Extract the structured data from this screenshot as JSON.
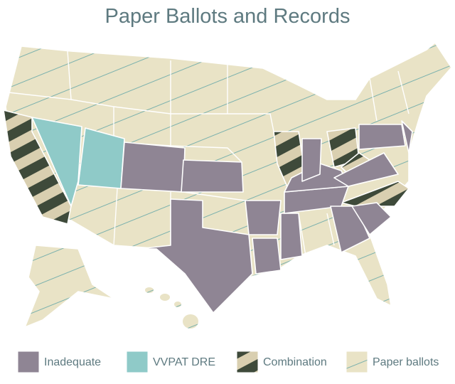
{
  "title": "Paper Ballots and Records",
  "legend": [
    {
      "label": "Inadequate",
      "color": "#8f8594"
    },
    {
      "label": "VVPAT DRE",
      "color": "#8fcac8"
    },
    {
      "label": "Combination",
      "color": "#3e4a3a"
    },
    {
      "label": "Paper ballots",
      "color": "#e9e3c6"
    }
  ]
}
